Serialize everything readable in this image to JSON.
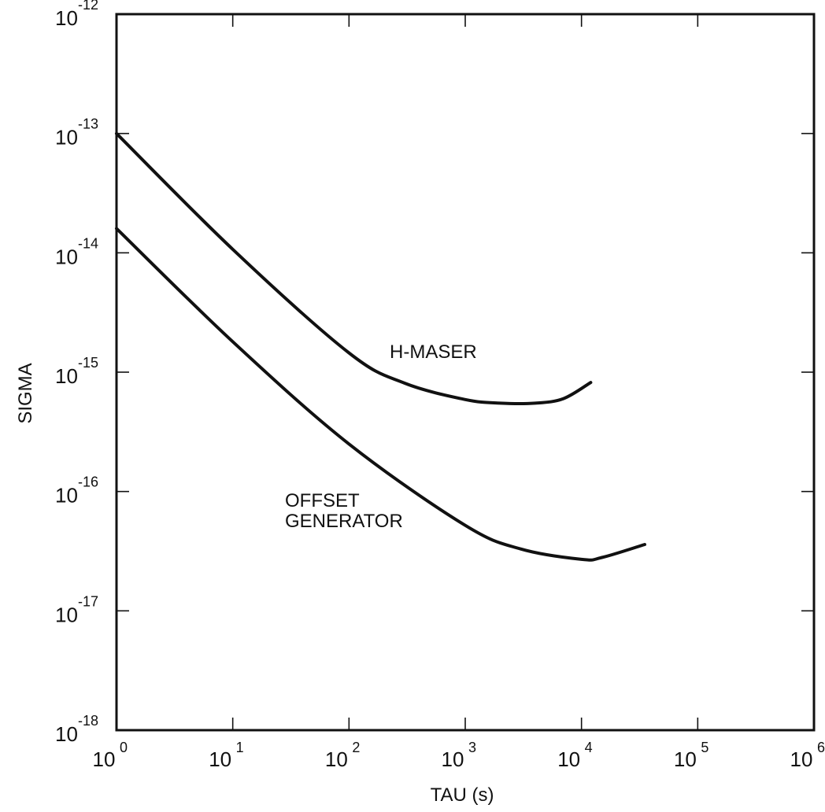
{
  "chart_data": {
    "type": "line",
    "title": "",
    "xlabel": "TAU (s)",
    "ylabel": "SIGMA",
    "xscale": "log",
    "yscale": "log",
    "xlim": [
      1,
      1000000
    ],
    "ylim": [
      1e-18,
      1e-12
    ],
    "grid": false,
    "x_ticks": [
      {
        "base": "10",
        "exp": "0",
        "value": 1
      },
      {
        "base": "10",
        "exp": "1",
        "value": 10
      },
      {
        "base": "10",
        "exp": "2",
        "value": 100
      },
      {
        "base": "10",
        "exp": "3",
        "value": 1000
      },
      {
        "base": "10",
        "exp": "4",
        "value": 10000
      },
      {
        "base": "10",
        "exp": "5",
        "value": 100000
      },
      {
        "base": "10",
        "exp": "6",
        "value": 1000000
      }
    ],
    "y_ticks": [
      {
        "base": "10",
        "exp": "-18",
        "value": 1e-18
      },
      {
        "base": "10",
        "exp": "-17",
        "value": 1e-17
      },
      {
        "base": "10",
        "exp": "-16",
        "value": 1e-16
      },
      {
        "base": "10",
        "exp": "-15",
        "value": 1e-15
      },
      {
        "base": "10",
        "exp": "-14",
        "value": 1e-14
      },
      {
        "base": "10",
        "exp": "-13",
        "value": 1e-13
      },
      {
        "base": "10",
        "exp": "-12",
        "value": 1e-12
      }
    ],
    "series": [
      {
        "name": "H-MASER",
        "label_lines": [
          "H-MASER"
        ],
        "points": [
          [
            1,
            1e-13
          ],
          [
            10,
            1.07e-14
          ],
          [
            100,
            1.45e-15
          ],
          [
            300,
            8.1e-16
          ],
          [
            1000,
            5.9e-16
          ],
          [
            2000,
            5.5e-16
          ],
          [
            4000,
            5.5e-16
          ],
          [
            7000,
            6e-16
          ],
          [
            12000,
            8.2e-16
          ]
        ]
      },
      {
        "name": "OFFSET GENERATOR",
        "label_lines": [
          "OFFSET",
          "GENERATOR"
        ],
        "points": [
          [
            1,
            1.6e-14
          ],
          [
            10,
            1.8e-15
          ],
          [
            100,
            2.5e-16
          ],
          [
            1000,
            5.2e-17
          ],
          [
            3000,
            3.3e-17
          ],
          [
            10000,
            2.7e-17
          ],
          [
            15000,
            2.8e-17
          ],
          [
            35000,
            3.6e-17
          ]
        ]
      }
    ]
  }
}
